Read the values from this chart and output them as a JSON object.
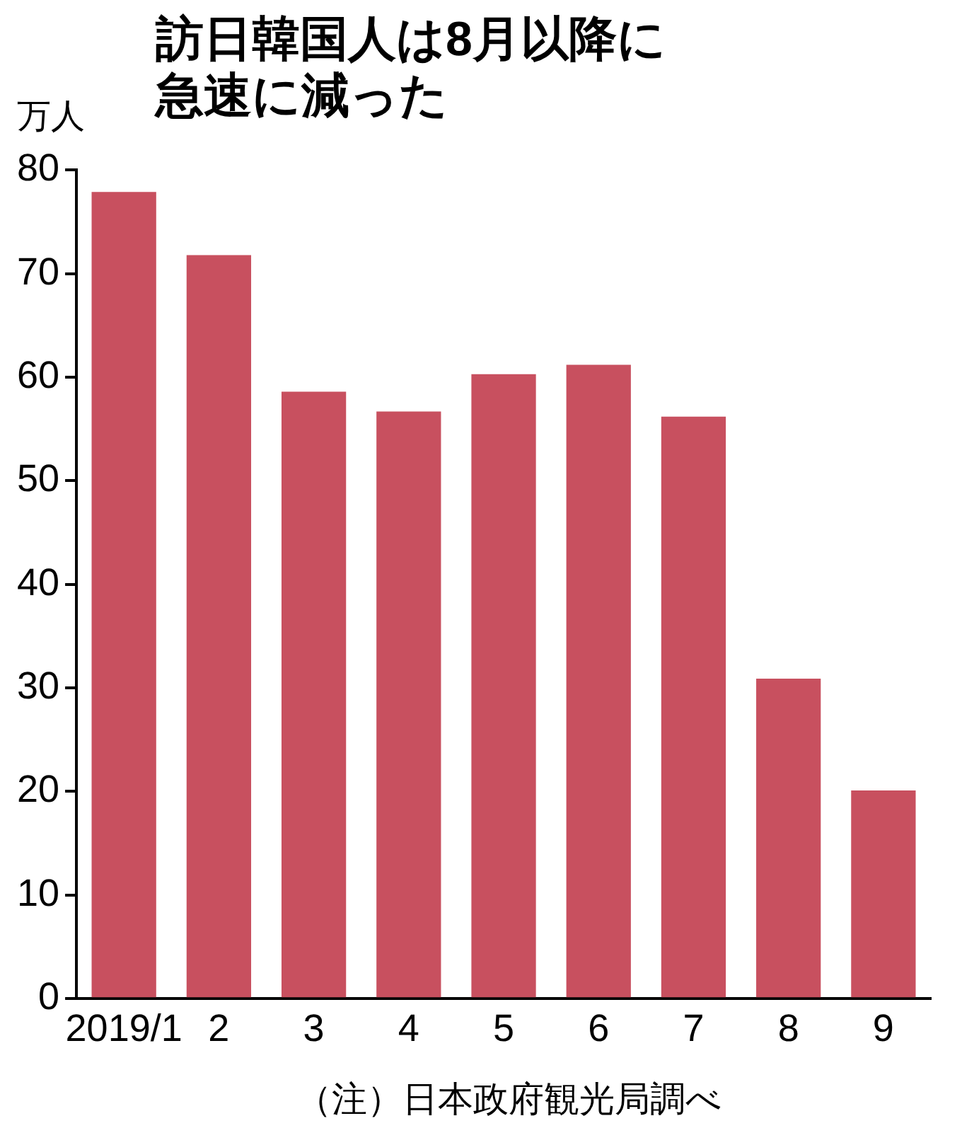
{
  "chart_data": {
    "type": "bar",
    "title": "訪日韓国人は8月以降に急速に減った",
    "ylabel": "万人",
    "categories": [
      "2019/1",
      "2",
      "3",
      "4",
      "5",
      "6",
      "7",
      "8",
      "9"
    ],
    "values": [
      77.9,
      71.8,
      58.6,
      56.7,
      60.3,
      61.2,
      56.2,
      30.9,
      20.1
    ],
    "color": "#c8505f",
    "ylim": [
      0,
      80
    ],
    "yticks": [
      0,
      10,
      20,
      30,
      40,
      50,
      60,
      70,
      80
    ],
    "grid": false,
    "annotations": [
      "（注）日本政府観光局調べ"
    ]
  }
}
